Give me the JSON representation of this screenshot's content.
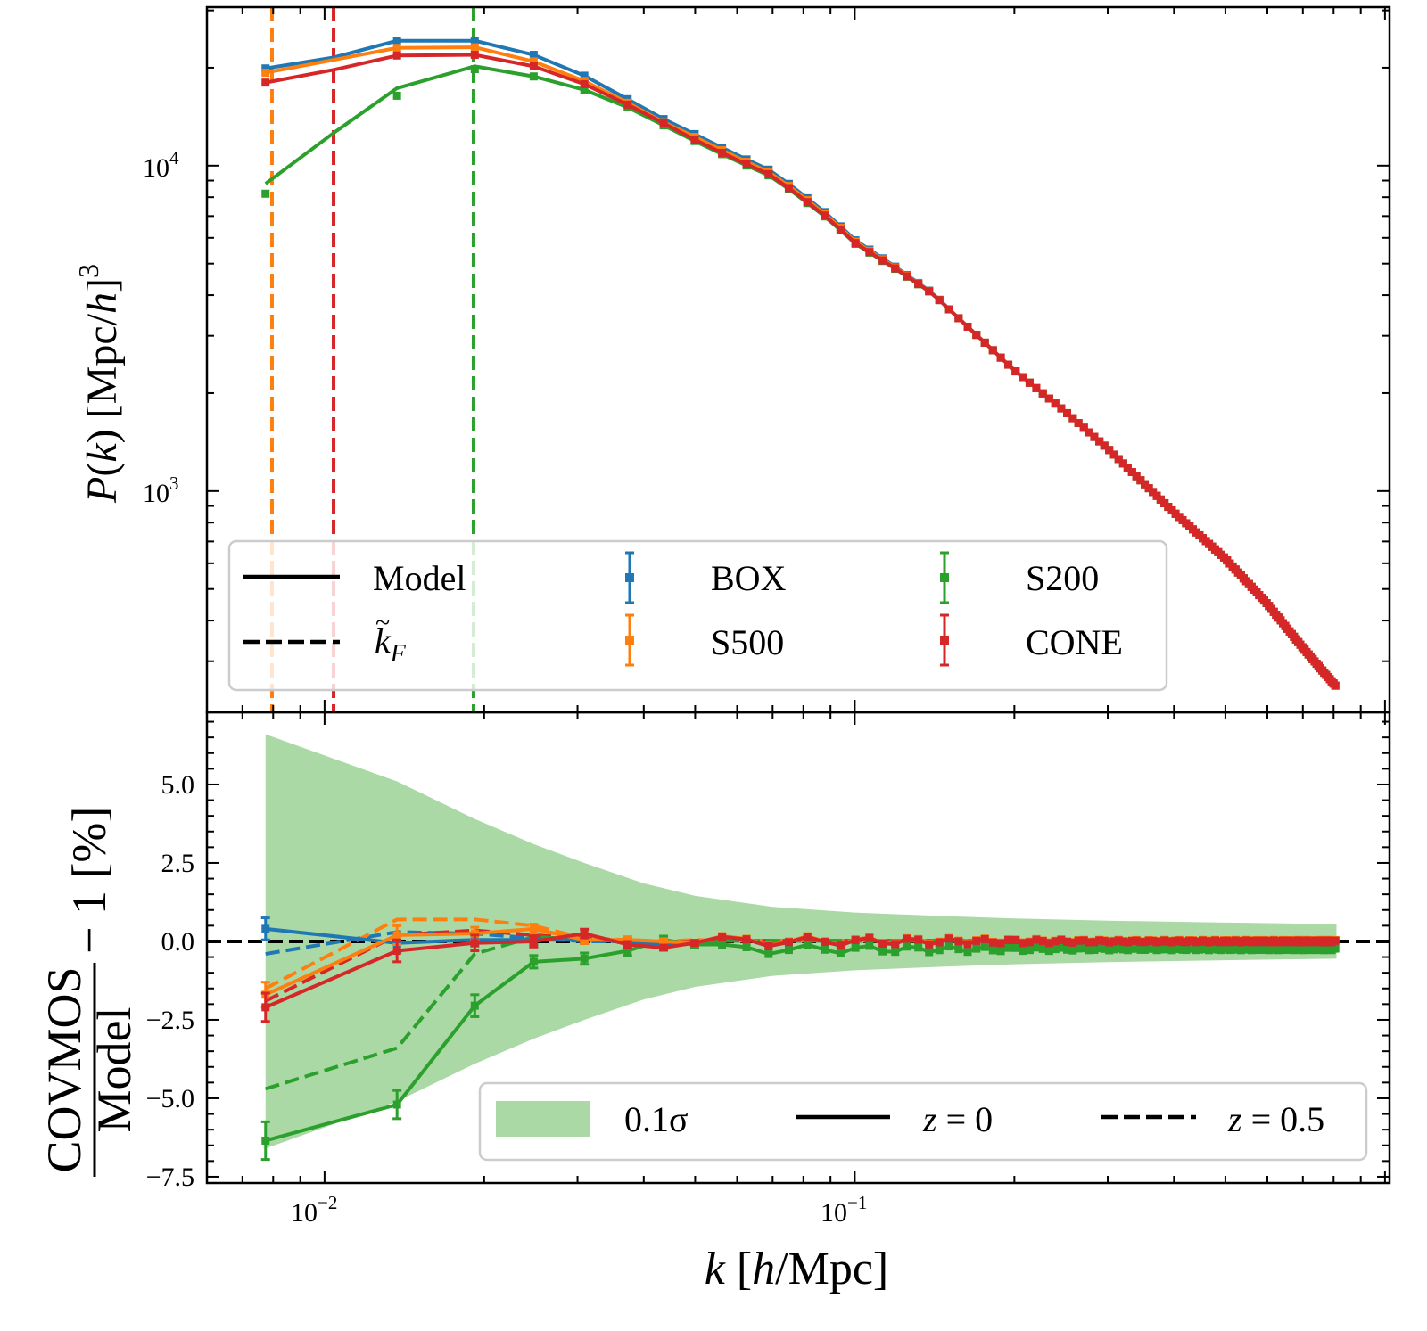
{
  "chart_data": [
    {
      "panel": "top",
      "type": "line",
      "xscale": "log",
      "yscale": "log",
      "xlim": [
        0.006,
        1.02
      ],
      "ylim": [
        209,
        30700
      ],
      "xlabel": "",
      "ylabel": "P(k) [Mpc/h]^3",
      "ylabel_parts": {
        "P": "P",
        "open": "(",
        "k": "k",
        "close": ")",
        "unit_open": " [Mpc/",
        "h": "h",
        "unit_close": "]",
        "exp": "3"
      },
      "yticks": [
        {
          "value": 1000,
          "mantissa": "10",
          "exp": "3"
        },
        {
          "value": 10000,
          "mantissa": "10",
          "exp": "4"
        }
      ],
      "vlines_kF": [
        {
          "name": "S500",
          "k": 0.00796,
          "color": "#ff7f0e"
        },
        {
          "name": "CONE",
          "k": 0.0104,
          "color": "#d62728"
        },
        {
          "name": "S200",
          "k": 0.0191,
          "color": "#2ca02c"
        }
      ],
      "k_low": [
        0.00774,
        0.0137,
        0.0192,
        0.0248,
        0.0309,
        0.0373,
        0.0436
      ],
      "series": [
        {
          "name": "BOX",
          "color": "#1f77b4",
          "low_values": [
            19900,
            24200,
            24200,
            21900,
            18900,
            16000,
            13900
          ],
          "offset": 1.04
        },
        {
          "name": "S500",
          "color": "#ff7f0e",
          "low_values": [
            19300,
            23000,
            23100,
            20900,
            18200,
            15600,
            13600
          ],
          "offset": 1.02
        },
        {
          "name": "CONE",
          "color": "#d62728",
          "low_values": [
            18000,
            21800,
            21900,
            20200,
            17800,
            15400,
            13500
          ],
          "offset": 1.0
        },
        {
          "name": "S200",
          "color": "#2ca02c",
          "low_values": [
            8200,
            16400,
            19800,
            18800,
            17100,
            15100,
            13300
          ],
          "offset": 0.99
        },
        {
          "name": "Model_S200",
          "color": "#2ca02c",
          "model_low": [
            8800,
            17300,
            20200
          ]
        }
      ],
      "model_high_k": {
        "k": [
          0.05,
          0.06,
          0.07,
          0.08,
          0.09,
          0.1,
          0.12,
          0.14,
          0.16,
          0.2,
          0.25,
          0.3,
          0.4,
          0.5,
          0.6,
          0.7,
          0.81
        ],
        "P": [
          12000,
          10400,
          9300,
          7900,
          6800,
          5800,
          4800,
          4050,
          3300,
          2350,
          1750,
          1350,
          860,
          620,
          450,
          330,
          250
        ]
      },
      "legend": {
        "position": "lower-left",
        "entries": [
          {
            "label": "Model",
            "style": "solid",
            "color": "#000000"
          },
          {
            "label": "k̃_F",
            "style": "dashed",
            "color": "#000000"
          },
          {
            "label": "BOX",
            "style": "errorbar",
            "color": "#1f77b4"
          },
          {
            "label": "S500",
            "style": "errorbar",
            "color": "#ff7f0e"
          },
          {
            "label": "S200",
            "style": "errorbar",
            "color": "#2ca02c"
          },
          {
            "label": "CONE",
            "style": "errorbar",
            "color": "#d62728"
          }
        ]
      }
    },
    {
      "panel": "bottom",
      "type": "line",
      "xscale": "log",
      "yscale": "linear",
      "xlim": [
        0.006,
        1.02
      ],
      "ylim": [
        -7.7,
        7.3
      ],
      "xlabel": "k [h/Mpc]",
      "ylabel": "COVMOS/Model − 1 [%]",
      "ylabel_parts": {
        "num": "COVMOS",
        "den": "Model",
        "rest": " − 1 [%]"
      },
      "yticks": [
        {
          "value": 5.0,
          "label": "5.0"
        },
        {
          "value": 2.5,
          "label": "2.5"
        },
        {
          "value": 0.0,
          "label": "0.0"
        },
        {
          "value": -2.5,
          "label": "−2.5"
        },
        {
          "value": -5.0,
          "label": "−5.0"
        },
        {
          "value": -7.5,
          "label": "−7.5"
        }
      ],
      "xticks": [
        {
          "value": 0.01,
          "mantissa": "10",
          "exp": "−2"
        },
        {
          "value": 0.1,
          "mantissa": "10",
          "exp": "−1"
        }
      ],
      "band_0p1sigma": {
        "color": "#aad9a6",
        "k": [
          0.00774,
          0.0137,
          0.0192,
          0.0248,
          0.0309,
          0.04,
          0.05,
          0.07,
          0.1,
          0.15,
          0.2,
          0.3,
          0.5,
          0.81
        ],
        "upper": [
          6.6,
          5.1,
          3.9,
          3.1,
          2.5,
          1.85,
          1.45,
          1.1,
          0.92,
          0.8,
          0.73,
          0.66,
          0.6,
          0.55
        ],
        "lower": [
          -6.6,
          -5.1,
          -3.9,
          -3.1,
          -2.5,
          -1.85,
          -1.45,
          -1.1,
          -0.92,
          -0.8,
          -0.73,
          -0.66,
          -0.6,
          -0.55
        ]
      },
      "k_low": [
        0.00774,
        0.0137,
        0.0192,
        0.0248,
        0.0309,
        0.0373,
        0.0436,
        0.05
      ],
      "residuals_z0": [
        {
          "name": "BOX",
          "color": "#1f77b4",
          "values": [
            0.4,
            -0.05,
            0.05,
            0.05,
            0.05,
            0.0,
            -0.1,
            -0.05
          ],
          "err": [
            0.35,
            0.3,
            0.2,
            0.15,
            0.12,
            0.1,
            0.08,
            0.07
          ],
          "tail": 0.0
        },
        {
          "name": "S500",
          "color": "#ff7f0e",
          "values": [
            -1.7,
            0.2,
            0.25,
            0.4,
            0.05,
            0.05,
            0.0,
            -0.05
          ],
          "err": [
            0.4,
            0.3,
            0.2,
            0.15,
            0.12,
            0.1,
            0.08,
            0.07
          ],
          "tail": 0.02
        },
        {
          "name": "CONE",
          "color": "#d62728",
          "values": [
            -2.1,
            -0.3,
            -0.05,
            0.0,
            0.25,
            -0.1,
            -0.2,
            -0.05
          ],
          "err": [
            0.45,
            0.35,
            0.25,
            0.18,
            0.14,
            0.1,
            0.08,
            0.07
          ],
          "tail": 0.0
        },
        {
          "name": "S200",
          "color": "#2ca02c",
          "values": [
            -6.35,
            -5.2,
            -2.05,
            -0.65,
            -0.55,
            -0.3,
            0.05,
            -0.1
          ],
          "err": [
            0.6,
            0.45,
            0.35,
            0.2,
            0.18,
            0.15,
            0.12,
            0.1
          ],
          "tail": -0.25
        }
      ],
      "residuals_z0p5": [
        {
          "name": "BOX",
          "color": "#1f77b4",
          "values": [
            -0.4,
            0.3,
            0.25,
            0.1,
            0.0,
            0.0,
            0.0,
            0.0
          ]
        },
        {
          "name": "S500",
          "color": "#ff7f0e",
          "values": [
            -1.5,
            0.7,
            0.7,
            0.5,
            0.1,
            0.05,
            0.0,
            0.05
          ]
        },
        {
          "name": "CONE",
          "color": "#d62728",
          "values": [
            -1.9,
            0.2,
            0.35,
            0.2,
            0.1,
            0.0,
            -0.05,
            0.0
          ]
        },
        {
          "name": "S200",
          "color": "#2ca02c",
          "values": [
            -4.7,
            -3.4,
            -0.4,
            0.15,
            0.05,
            0.0,
            0.0,
            -0.05
          ]
        }
      ],
      "legend": {
        "position": "lower-right",
        "entries": [
          {
            "label": "0.1σ",
            "style": "patch",
            "color": "#aad9a6"
          },
          {
            "label": "z = 0",
            "style": "solid",
            "color": "#000000"
          },
          {
            "label": "z = 0.5",
            "style": "dashed",
            "color": "#000000"
          }
        ]
      }
    }
  ],
  "labels": {
    "top_ytick_1e3": "10",
    "top_ytick_1e3_exp": "3",
    "top_ytick_1e4": "10",
    "top_ytick_1e4_exp": "4",
    "xtick_1e-2": "10",
    "xtick_1e-2_exp": "−2",
    "xtick_1e-1": "10",
    "xtick_1e-1_exp": "−1",
    "xlabel_k": "k",
    "xlabel_rest1": " [",
    "xlabel_h": "h",
    "xlabel_rest2": "/Mpc]",
    "top_ylabel_P": "P",
    "top_ylabel_paren_open": "(",
    "top_ylabel_k": "k",
    "top_ylabel_paren_close": ")",
    "top_ylabel_unit1": " [Mpc/",
    "top_ylabel_h": "h",
    "top_ylabel_unit2": "]",
    "top_ylabel_exp": "3",
    "bot_ylabel_num": "COVMOS",
    "bot_ylabel_den": "Model",
    "bot_ylabel_rest": "− 1 [%]",
    "legend_model": "Model",
    "legend_kf_k": "k",
    "legend_kf_sub": "F",
    "legend_box": "BOX",
    "legend_s500": "S500",
    "legend_s200": "S200",
    "legend_cone": "CONE",
    "legend_band": "0.1σ",
    "legend_z0_z": "z",
    "legend_z0_val": " = 0",
    "legend_z05_z": "z",
    "legend_z05_val": " = 0.5"
  }
}
